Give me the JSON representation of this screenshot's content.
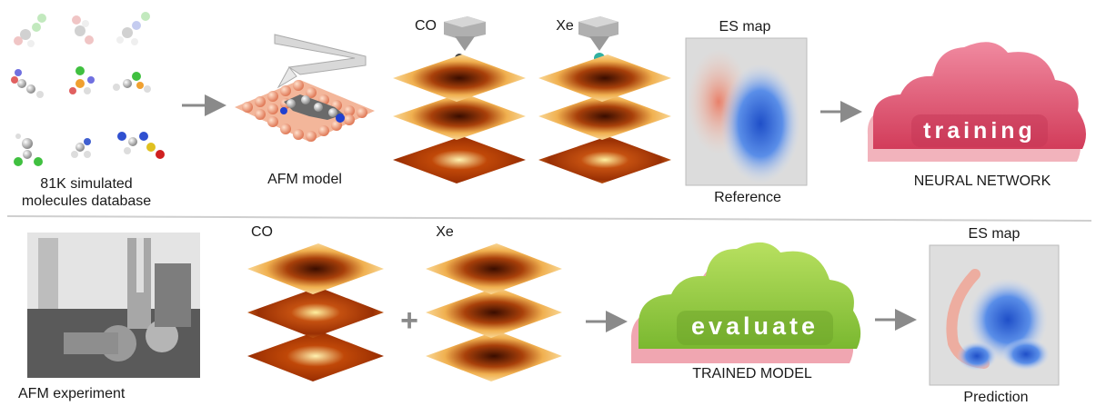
{
  "top": {
    "database_label_line1": "81K simulated",
    "database_label_line2": "molecules database",
    "afm_model_label": "AFM model",
    "tip_co_label": "CO",
    "tip_xe_label": "Xe",
    "es_map_label": "ES map",
    "reference_label": "Reference",
    "training_text": "training",
    "neural_network_label": "NEURAL NETWORK"
  },
  "bottom": {
    "afm_experiment_label": "AFM experiment",
    "co_label": "CO",
    "xe_label": "Xe",
    "plus_sign": "+",
    "evaluate_text": "evaluate",
    "trained_model_label": "TRAINED MODEL",
    "es_map_label": "ES map",
    "prediction_label": "Prediction"
  },
  "colors": {
    "training_cloud": "#e0506a",
    "evaluate_cloud": "#8cc63f",
    "arrow": "#8a8a8a",
    "divider": "#cfcfcf",
    "es_positive": "#e8806a",
    "es_negative": "#3a6fd8"
  }
}
